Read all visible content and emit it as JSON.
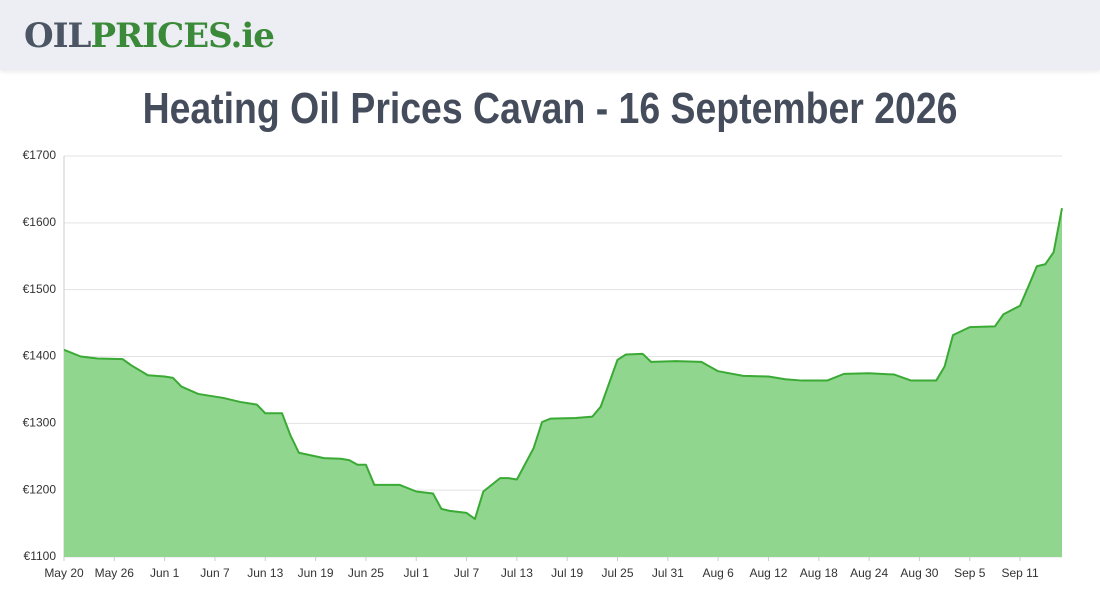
{
  "header": {
    "logo_left": "OIL",
    "logo_right": "PRICES.ie"
  },
  "chart_data": {
    "type": "area",
    "title": "Heating Oil Prices Cavan - 16 September 2026",
    "color": "#3aaa35",
    "fill": "#90d68e",
    "grid": true,
    "x": [
      0,
      2,
      4,
      7,
      8,
      10,
      12,
      13,
      14,
      16,
      19,
      21,
      23,
      24,
      26,
      27,
      28,
      31,
      33,
      34,
      35,
      36,
      37,
      40,
      42,
      44,
      45,
      46,
      48,
      49,
      50,
      52,
      53,
      54,
      56,
      57,
      58,
      61,
      63,
      64,
      66,
      67,
      69,
      70,
      73,
      76,
      78,
      81,
      84,
      86,
      88,
      91,
      93,
      96,
      99,
      101,
      104,
      105,
      106,
      108,
      111,
      112,
      114,
      115,
      116,
      117,
      118,
      119
    ],
    "values": [
      1410,
      1400,
      1397,
      1396,
      1387,
      1372,
      1370,
      1368,
      1355,
      1344,
      1338,
      1332,
      1328,
      1315,
      1315,
      1282,
      1256,
      1248,
      1247,
      1245,
      1238,
      1238,
      1208,
      1208,
      1198,
      1195,
      1172,
      1169,
      1166,
      1157,
      1198,
      1218,
      1218,
      1216,
      1263,
      1302,
      1307,
      1308,
      1310,
      1325,
      1395,
      1403,
      1404,
      1392,
      1393,
      1392,
      1378,
      1371,
      1370,
      1366,
      1364,
      1364,
      1374,
      1375,
      1373,
      1364,
      1364,
      1385,
      1432,
      1444,
      1445,
      1463,
      1476,
      1505,
      1535,
      1538,
      1556,
      1622
    ],
    "xlim": [
      0,
      119
    ],
    "xticks": [
      {
        "value": 0,
        "label": "May 20"
      },
      {
        "value": 6,
        "label": "May 26"
      },
      {
        "value": 12,
        "label": "Jun 1"
      },
      {
        "value": 18,
        "label": "Jun 7"
      },
      {
        "value": 24,
        "label": "Jun 13"
      },
      {
        "value": 30,
        "label": "Jun 19"
      },
      {
        "value": 36,
        "label": "Jun 25"
      },
      {
        "value": 42,
        "label": "Jul 1"
      },
      {
        "value": 48,
        "label": "Jul 7"
      },
      {
        "value": 54,
        "label": "Jul 13"
      },
      {
        "value": 60,
        "label": "Jul 19"
      },
      {
        "value": 66,
        "label": "Jul 25"
      },
      {
        "value": 72,
        "label": "Jul 31"
      },
      {
        "value": 78,
        "label": "Aug 6"
      },
      {
        "value": 84,
        "label": "Aug 12"
      },
      {
        "value": 90,
        "label": "Aug 18"
      },
      {
        "value": 96,
        "label": "Aug 24"
      },
      {
        "value": 102,
        "label": "Aug 30"
      },
      {
        "value": 108,
        "label": "Sep 5"
      },
      {
        "value": 114,
        "label": "Sep 11"
      }
    ],
    "ylim": [
      1100,
      1700
    ],
    "yticks": [
      {
        "value": 1100,
        "label": "€1100"
      },
      {
        "value": 1200,
        "label": "€1200"
      },
      {
        "value": 1300,
        "label": "€1300"
      },
      {
        "value": 1400,
        "label": "€1400"
      },
      {
        "value": 1500,
        "label": "€1500"
      },
      {
        "value": 1600,
        "label": "€1600"
      },
      {
        "value": 1700,
        "label": "€1700"
      }
    ]
  }
}
